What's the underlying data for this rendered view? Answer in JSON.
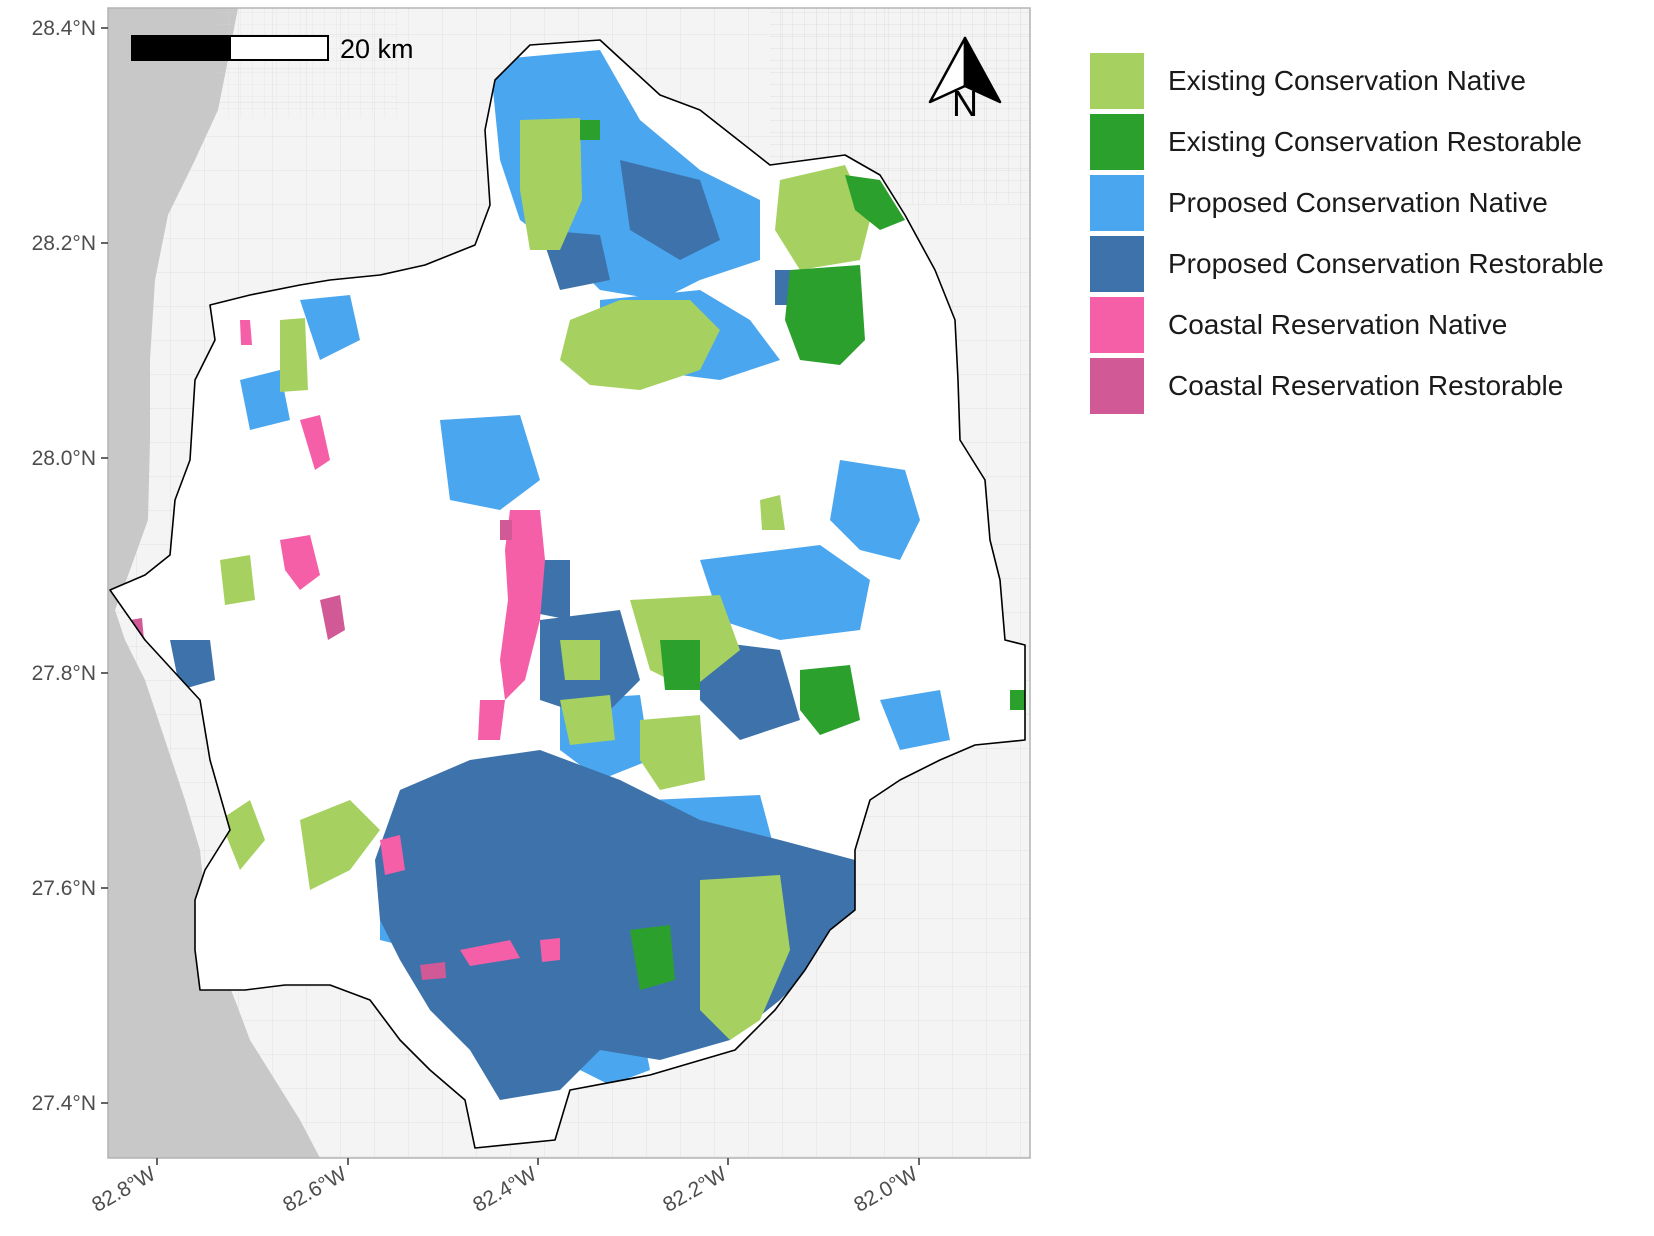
{
  "map": {
    "scale_bar_label": "20 km",
    "north_arrow_label": "N",
    "lat_ticks": [
      "28.4°N",
      "28.2°N",
      "28.0°N",
      "27.8°N",
      "27.6°N",
      "27.4°N"
    ],
    "lon_ticks": [
      "82.8°W",
      "82.6°W",
      "82.4°W",
      "82.2°W",
      "82.0°W"
    ],
    "colors": {
      "water": "#c8c8c8",
      "land": "#f4f4f4",
      "roads": "#e2e2e2",
      "boundary": "#000000",
      "panel_border": "#b3b3b3"
    }
  },
  "legend": {
    "items": [
      {
        "label": "Existing Conservation Native",
        "color": "#a6d160"
      },
      {
        "label": "Existing Conservation Restorable",
        "color": "#2ca02c"
      },
      {
        "label": "Proposed Conservation Native",
        "color": "#4ba6f0"
      },
      {
        "label": "Proposed Conservation Restorable",
        "color": "#3d73aa"
      },
      {
        "label": "Coastal Reservation Native",
        "color": "#f45fa8"
      },
      {
        "label": "Coastal Reservation Restorable",
        "color": "#d15a96"
      }
    ]
  }
}
